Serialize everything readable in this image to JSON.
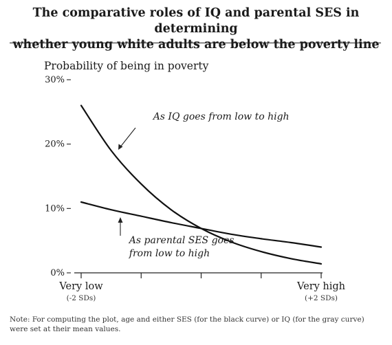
{
  "title_line1": "The comparative roles of IQ and parental SES in determining",
  "title_line2": "whether young white adults are below the poverty line",
  "note": "Note: For computing the plot, age and either SES (for the black curve) or IQ (for the gray curve) were set at their mean values.",
  "chart_data": {
    "type": "line",
    "ylabel": "Probability of being in poverty",
    "ylim": [
      0,
      30
    ],
    "y_ticks": [
      {
        "value": 0,
        "label": "0%"
      },
      {
        "value": 10,
        "label": "10%"
      },
      {
        "value": 20,
        "label": "20%"
      },
      {
        "value": 30,
        "label": "30%"
      }
    ],
    "xlim": [
      -2,
      2
    ],
    "x_ticks": [
      -2,
      -1,
      0,
      1,
      2
    ],
    "x_tick_labels": [
      {
        "value": -2,
        "label": "Very low",
        "sublabel": "(-2 SDs)"
      },
      {
        "value": 2,
        "label": "Very high",
        "sublabel": "(+2 SDs)"
      }
    ],
    "series": [
      {
        "x": [
          -2,
          -1.5,
          -1,
          -0.5,
          0,
          0.5,
          1,
          1.5,
          2
        ],
        "values": [
          26.0,
          19.0,
          13.8,
          9.8,
          6.9,
          4.8,
          3.3,
          2.2,
          1.4
        ]
      },
      {
        "x": [
          -2,
          -1.5,
          -1,
          -0.5,
          0,
          0.5,
          1,
          1.5,
          2
        ],
        "values": [
          11.0,
          9.8,
          8.8,
          7.8,
          6.9,
          6.0,
          5.3,
          4.7,
          4.0
        ]
      }
    ],
    "annotations": [
      {
        "text": "As IQ goes from low to high",
        "x": -0.8,
        "y": 23.8
      },
      {
        "text": "As parental SES goes",
        "text2": "from low to high",
        "x": -1.2,
        "y": 4.6
      }
    ]
  }
}
